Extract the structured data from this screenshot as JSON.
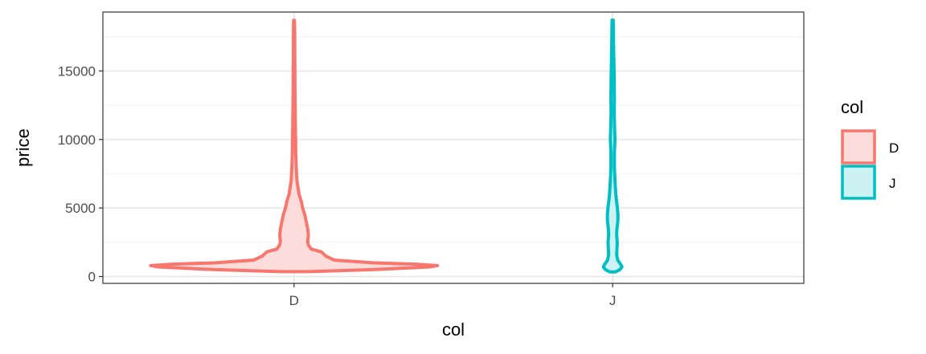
{
  "chart_data": {
    "type": "violin",
    "xlabel": "col",
    "ylabel": "price",
    "categories": [
      "D",
      "J"
    ],
    "ylim": [
      -500,
      19300
    ],
    "yticks": [
      0,
      5000,
      10000,
      15000
    ],
    "ytick_labels": [
      "0",
      "5000",
      "10000",
      "15000"
    ],
    "grid": true,
    "legend": {
      "title": "col",
      "position": "right",
      "entries": [
        "D",
        "J"
      ]
    },
    "colors": {
      "D": {
        "stroke": "#F8766D",
        "fill": "#FCDDDB"
      },
      "J": {
        "stroke": "#00BFC4",
        "fill": "#CCF2F3"
      }
    },
    "series": [
      {
        "name": "D",
        "min": 357,
        "max": 18693,
        "density": [
          [
            357,
            0.1
          ],
          [
            500,
            0.55
          ],
          [
            700,
            0.95
          ],
          [
            800,
            1.0
          ],
          [
            900,
            0.85
          ],
          [
            1000,
            0.55
          ],
          [
            1200,
            0.28
          ],
          [
            1500,
            0.22
          ],
          [
            1800,
            0.19
          ],
          [
            2000,
            0.12
          ],
          [
            2300,
            0.1
          ],
          [
            2600,
            0.095
          ],
          [
            3000,
            0.1
          ],
          [
            3500,
            0.095
          ],
          [
            4000,
            0.085
          ],
          [
            4500,
            0.075
          ],
          [
            5000,
            0.06
          ],
          [
            5500,
            0.05
          ],
          [
            6000,
            0.035
          ],
          [
            7000,
            0.02
          ],
          [
            8000,
            0.015
          ],
          [
            9000,
            0.012
          ],
          [
            10000,
            0.011
          ],
          [
            11000,
            0.009
          ],
          [
            12000,
            0.008
          ],
          [
            13000,
            0.007
          ],
          [
            14000,
            0.006
          ],
          [
            15000,
            0.006
          ],
          [
            16000,
            0.005
          ],
          [
            17000,
            0.005
          ],
          [
            18000,
            0.004
          ],
          [
            18693,
            0.003
          ]
        ]
      },
      {
        "name": "J",
        "min": 335,
        "max": 18710,
        "density": [
          [
            335,
            0.02
          ],
          [
            500,
            0.05
          ],
          [
            700,
            0.065
          ],
          [
            900,
            0.055
          ],
          [
            1200,
            0.035
          ],
          [
            1600,
            0.028
          ],
          [
            2000,
            0.03
          ],
          [
            2500,
            0.032
          ],
          [
            3000,
            0.028
          ],
          [
            3500,
            0.03
          ],
          [
            4000,
            0.036
          ],
          [
            4500,
            0.037
          ],
          [
            5000,
            0.033
          ],
          [
            5500,
            0.027
          ],
          [
            6000,
            0.022
          ],
          [
            7000,
            0.016
          ],
          [
            8000,
            0.012
          ],
          [
            9000,
            0.012
          ],
          [
            10000,
            0.016
          ],
          [
            11000,
            0.013
          ],
          [
            12000,
            0.011
          ],
          [
            13000,
            0.012
          ],
          [
            14000,
            0.011
          ],
          [
            15000,
            0.01
          ],
          [
            16000,
            0.008
          ],
          [
            17000,
            0.006
          ],
          [
            18000,
            0.005
          ],
          [
            18710,
            0.004
          ]
        ]
      }
    ]
  }
}
